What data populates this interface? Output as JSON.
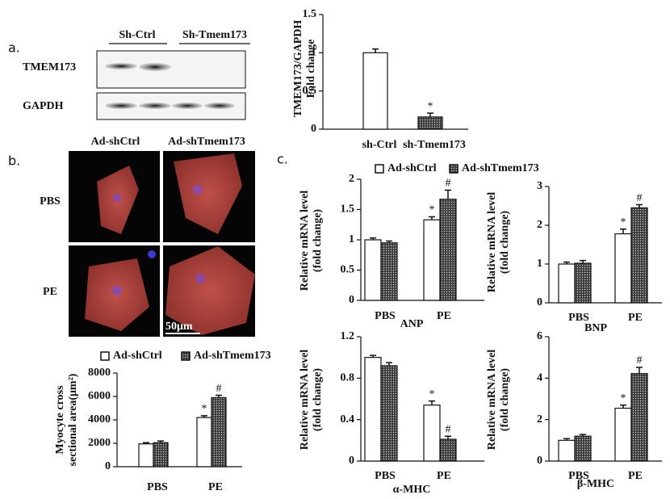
{
  "panel_labels": [
    "a.",
    "b.",
    "c."
  ],
  "blot": {
    "groups": [
      "Sh-Ctrl",
      "Sh-Tmem173"
    ],
    "rows": [
      "TMEM173",
      "GAPDH"
    ]
  },
  "micrograph": {
    "columns": [
      "Ad-shCtrl",
      "Ad-shTmem173"
    ],
    "rows": [
      "PBS",
      "PE"
    ],
    "scale_bar": "50μm"
  },
  "chart_data": [
    {
      "type": "bar",
      "y_label": [
        "TMEM173/GAPDH",
        "Fold change"
      ],
      "categories": [
        "sh-Ctrl",
        "sh-Tmem173"
      ],
      "values": [
        1,
        0.16
      ],
      "errors": [
        0.05,
        0.05
      ],
      "value_annotations": [
        null,
        "*"
      ],
      "colors": [
        "#ffffff",
        "#3a3a3a"
      ],
      "patterns": [
        "solid",
        "dots"
      ],
      "ylim": [
        0,
        1.5
      ],
      "yticks": [
        0,
        0.5,
        1,
        1.5
      ]
    },
    {
      "type": "bar",
      "y_label": [
        "Myocyte cross",
        "sectional area(μm²)"
      ],
      "categories": [
        "PBS",
        "PE"
      ],
      "series": [
        {
          "name": "Ad-shCtrl",
          "color": "#ffffff",
          "pattern": "solid",
          "values": [
            1950,
            4200
          ],
          "errors": [
            100,
            150
          ],
          "value_annotations": [
            null,
            "*"
          ]
        },
        {
          "name": "Ad-shTmem173",
          "color": "#3a3a3a",
          "pattern": "dots",
          "values": [
            2050,
            5900
          ],
          "errors": [
            150,
            200
          ],
          "value_annotations": [
            null,
            "#"
          ]
        }
      ],
      "ylim": [
        0,
        8000
      ],
      "yticks": [
        0,
        2000,
        4000,
        6000,
        8000
      ]
    },
    {
      "type": "bar",
      "x_label": "ANP",
      "y_label": [
        "Relative mRNA level",
        "(fold change)"
      ],
      "categories": [
        "PBS",
        "PE"
      ],
      "series": [
        {
          "name": "Ad-shCtrl",
          "color": "#ffffff",
          "pattern": "solid",
          "values": [
            1.0,
            1.33
          ],
          "errors": [
            0.03,
            0.05
          ],
          "value_annotations": [
            null,
            "*"
          ]
        },
        {
          "name": "Ad-shTmem173",
          "color": "#3a3a3a",
          "pattern": "dots",
          "values": [
            0.95,
            1.67
          ],
          "errors": [
            0.03,
            0.15
          ],
          "value_annotations": [
            null,
            "#"
          ]
        }
      ],
      "ylim": [
        0,
        2
      ],
      "yticks": [
        0,
        0.5,
        1,
        1.5,
        2
      ]
    },
    {
      "type": "bar",
      "x_label": "BNP",
      "y_label": [
        "Relative mRNA level",
        "(fold change)"
      ],
      "categories": [
        "PBS",
        "PE"
      ],
      "series": [
        {
          "color": "#ffffff",
          "pattern": "solid",
          "values": [
            1.0,
            1.78
          ],
          "errors": [
            0.05,
            0.12
          ],
          "value_annotations": [
            null,
            "*"
          ]
        },
        {
          "color": "#3a3a3a",
          "pattern": "dots",
          "values": [
            1.02,
            2.45
          ],
          "errors": [
            0.07,
            0.08
          ],
          "value_annotations": [
            null,
            "#"
          ]
        }
      ],
      "ylim": [
        0,
        3
      ],
      "yticks": [
        0,
        1,
        2,
        3
      ]
    },
    {
      "type": "bar",
      "x_label": "α-MHC",
      "y_label": [
        "Relative mRNA level",
        "(fold change)"
      ],
      "categories": [
        "PBS",
        "PE"
      ],
      "series": [
        {
          "color": "#ffffff",
          "pattern": "solid",
          "values": [
            1.0,
            0.54
          ],
          "errors": [
            0.02,
            0.04
          ],
          "value_annotations": [
            null,
            "*"
          ]
        },
        {
          "color": "#3a3a3a",
          "pattern": "dots",
          "values": [
            0.92,
            0.21
          ],
          "errors": [
            0.03,
            0.03
          ],
          "value_annotations": [
            null,
            "#"
          ]
        }
      ],
      "ylim": [
        0,
        1.2
      ],
      "yticks": [
        0,
        0.4,
        0.8,
        1.2
      ]
    },
    {
      "type": "bar",
      "x_label": "β-MHC",
      "y_label": [
        "Relative mRNA level",
        "(fold change)"
      ],
      "categories": [
        "PBS",
        "PE"
      ],
      "series": [
        {
          "color": "#ffffff",
          "pattern": "solid",
          "values": [
            1.0,
            2.55
          ],
          "errors": [
            0.08,
            0.15
          ],
          "value_annotations": [
            null,
            "*"
          ]
        },
        {
          "color": "#3a3a3a",
          "pattern": "dots",
          "values": [
            1.2,
            4.22
          ],
          "errors": [
            0.08,
            0.3
          ],
          "value_annotations": [
            null,
            "#"
          ]
        }
      ],
      "ylim": [
        0,
        6
      ],
      "yticks": [
        0,
        2,
        4,
        6
      ]
    }
  ]
}
